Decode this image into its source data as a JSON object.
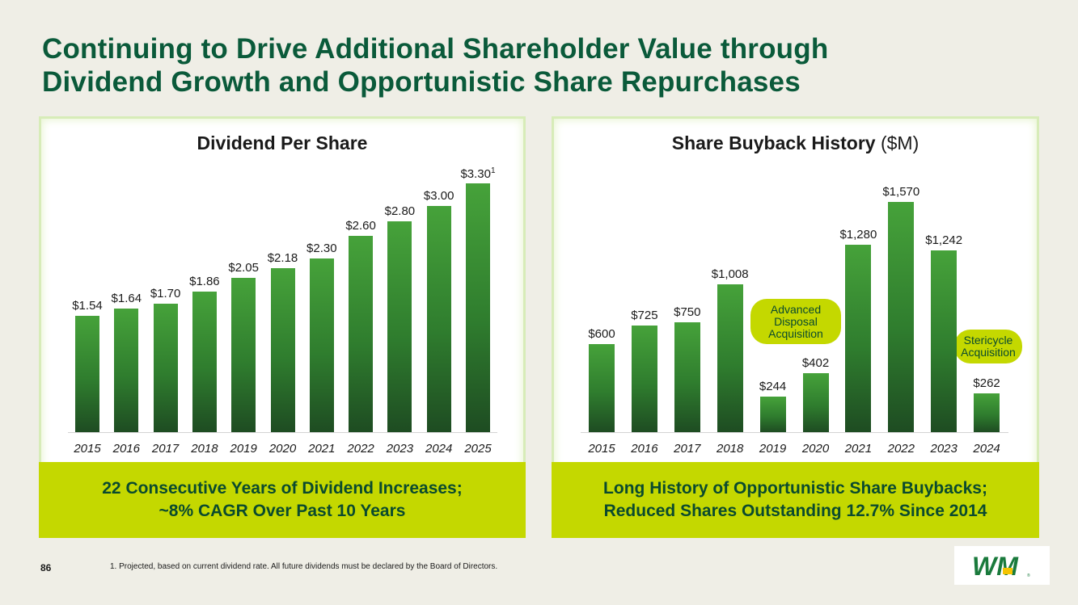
{
  "header": {
    "title_line1": "Continuing to Drive Additional Shareholder Value through",
    "title_line2": "Dividend Growth and Opportunistic Share Repurchases"
  },
  "chart_data": [
    {
      "type": "bar",
      "title": "Dividend Per Share",
      "categories": [
        "2015",
        "2016",
        "2017",
        "2018",
        "2019",
        "2020",
        "2021",
        "2022",
        "2023",
        "2024",
        "2025"
      ],
      "values": [
        1.54,
        1.64,
        1.7,
        1.86,
        2.05,
        2.18,
        2.3,
        2.6,
        2.8,
        3.0,
        3.3
      ],
      "labels": [
        "$1.54",
        "$1.64",
        "$1.70",
        "$1.86",
        "$2.05",
        "$2.18",
        "$2.30",
        "$2.60",
        "$2.80",
        "$3.00",
        "$3.30"
      ],
      "footnote_marker": {
        "index": 10,
        "text": "1"
      },
      "ylim": [
        0,
        3.3
      ]
    },
    {
      "type": "bar",
      "title": "Share Buyback History",
      "unit": "($M)",
      "categories": [
        "2015",
        "2016",
        "2017",
        "2018",
        "2019",
        "2020",
        "2021",
        "2022",
        "2023",
        "2024"
      ],
      "values": [
        600,
        725,
        750,
        1008,
        244,
        402,
        1280,
        1570,
        1242,
        262
      ],
      "labels": [
        "$600",
        "$725",
        "$750",
        "$1,008",
        "$244",
        "$402",
        "$1,280",
        "$1,570",
        "$1,242",
        "$262"
      ],
      "annotations": [
        {
          "text_lines": [
            "Advanced",
            "Disposal",
            "Acquisition"
          ],
          "near": "2019"
        },
        {
          "text_lines": [
            "Stericycle",
            "Acquisition"
          ],
          "near": "2024"
        }
      ],
      "ylim": [
        0,
        1570
      ]
    }
  ],
  "banners": {
    "left_line1": "22 Consecutive Years of Dividend Increases;",
    "left_line2": "~8% CAGR Over Past 10 Years",
    "right_line1": "Long History of Opportunistic Share Buybacks;",
    "right_line2": "Reduced Shares Outstanding 12.7% Since 2014"
  },
  "footer": {
    "page_number": "86",
    "footnote": "1.  Projected, based on current dividend rate. All future dividends must be declared by the Board of Directors."
  },
  "logo": {
    "text": "WM",
    "icon": "wm-logo-icon",
    "colors": {
      "green": "#1a7a3c",
      "yellow": "#f5c400"
    }
  },
  "colors": {
    "title": "#0a5a3a",
    "banner": "#c4d800",
    "bar_top": "#46a23a",
    "bar_bottom": "#1e4c22"
  }
}
